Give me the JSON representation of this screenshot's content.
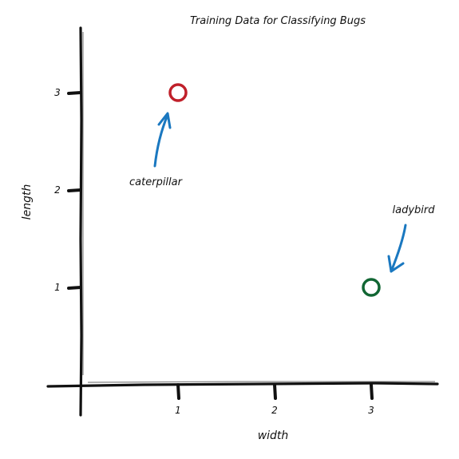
{
  "chart_data": {
    "type": "scatter",
    "title": "Training Data for Classifying Bugs",
    "xlabel": "width",
    "ylabel": "length",
    "xlim": [
      0,
      3.7
    ],
    "ylim": [
      0,
      3.9
    ],
    "xticks": [
      1,
      2,
      3
    ],
    "yticks": [
      1,
      2,
      3
    ],
    "grid": false,
    "points": [
      {
        "x": 1,
        "y": 3,
        "color": "#c0202a",
        "label": "caterpillar"
      },
      {
        "x": 3,
        "y": 1,
        "color": "#116633",
        "label": "ladybird"
      }
    ],
    "annotation_color": "#1a78c0"
  }
}
